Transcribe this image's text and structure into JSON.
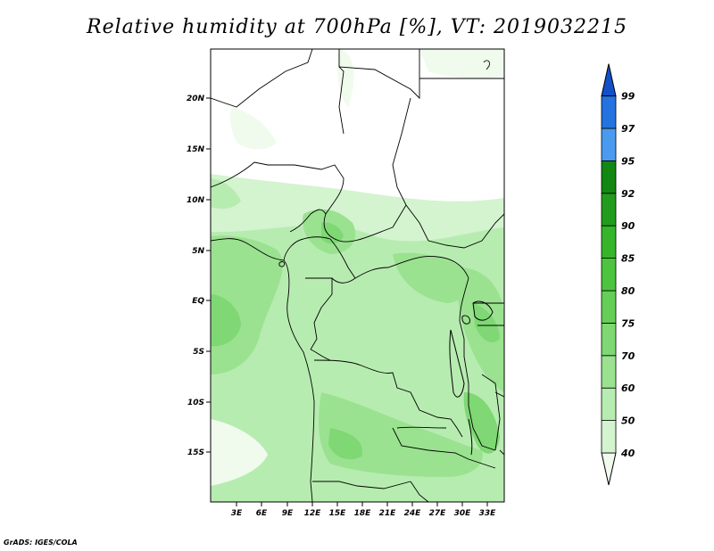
{
  "title": "Relative humidity at 700hPa [%], VT: 2019032215",
  "credit": "GrADS: IGES/COLA",
  "map": {
    "lat_ticks": [
      "20N",
      "15N",
      "10N",
      "5N",
      "EQ",
      "5S",
      "10S",
      "15S"
    ],
    "lon_ticks": [
      "3E",
      "6E",
      "9E",
      "12E",
      "15E",
      "18E",
      "21E",
      "24E",
      "27E",
      "30E",
      "33E"
    ]
  },
  "colorbar": {
    "levels": [
      "40",
      "50",
      "60",
      "70",
      "75",
      "80",
      "85",
      "90",
      "92",
      "95",
      "97",
      "99"
    ],
    "colors": [
      "#f0fbee",
      "#d4f3cf",
      "#b7ecb0",
      "#9ae290",
      "#7fd873",
      "#64ce56",
      "#4cc43e",
      "#36b52a",
      "#229c1c",
      "#128713",
      "#4a9bf0",
      "#2473e0",
      "#1250c8"
    ]
  }
}
